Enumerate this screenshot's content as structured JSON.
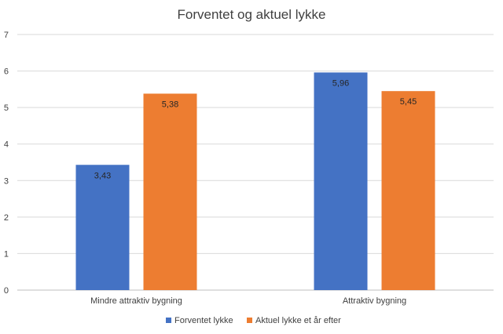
{
  "chart_data": {
    "type": "bar",
    "title": "Forventet og aktuel lykke",
    "categories": [
      "Mindre attraktiv bygning",
      "Attraktiv bygning"
    ],
    "series": [
      {
        "name": "Forventet lykke",
        "values": [
          3.43,
          5.96
        ],
        "labels": [
          "3,43",
          "5,96"
        ],
        "color": "#4472c4"
      },
      {
        "name": "Aktuel lykke et år efter",
        "values": [
          5.38,
          5.45
        ],
        "labels": [
          "5,38",
          "5,45"
        ],
        "color": "#ed7d31"
      }
    ],
    "ylim": [
      0,
      7
    ],
    "yticks": [
      "0",
      "1",
      "2",
      "3",
      "4",
      "5",
      "6",
      "7"
    ],
    "grid": true,
    "legend_position": "bottom"
  }
}
